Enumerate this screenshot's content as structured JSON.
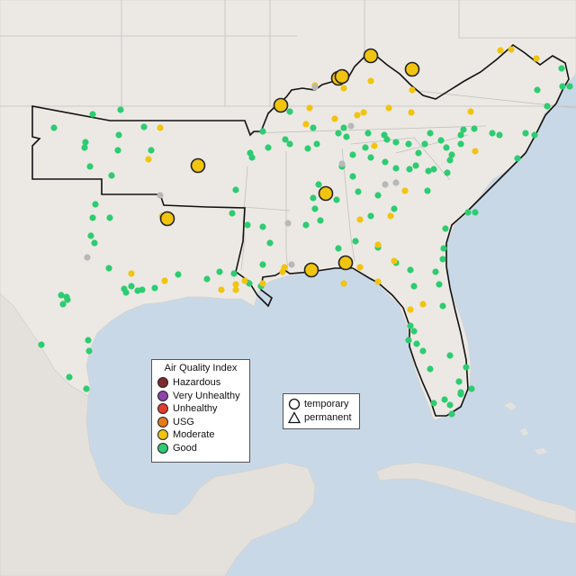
{
  "map": {
    "colors": {
      "water": "#c9d8e6",
      "land": "#ece9e5",
      "land_alt": "#e4e1dc",
      "region_outline": "#111111",
      "state_border": "#c3c0bb",
      "marker_outline": "#222222"
    },
    "legend": {
      "title": "Air Quality Index",
      "items": [
        {
          "label": "Hazardous",
          "color": "#7e2a2a"
        },
        {
          "label": "Very Unhealthy",
          "color": "#8e44ad"
        },
        {
          "label": "Unhealthy",
          "color": "#e53b2c"
        },
        {
          "label": "USG",
          "color": "#e57a1a"
        },
        {
          "label": "Moderate",
          "color": "#f1c40f"
        },
        {
          "label": "Good",
          "color": "#2ecc71"
        }
      ]
    },
    "monitor_types": {
      "items": [
        {
          "label": "temporary",
          "symbol": "circle-icon"
        },
        {
          "label": "permanent",
          "symbol": "triangle-icon"
        }
      ]
    }
  }
}
